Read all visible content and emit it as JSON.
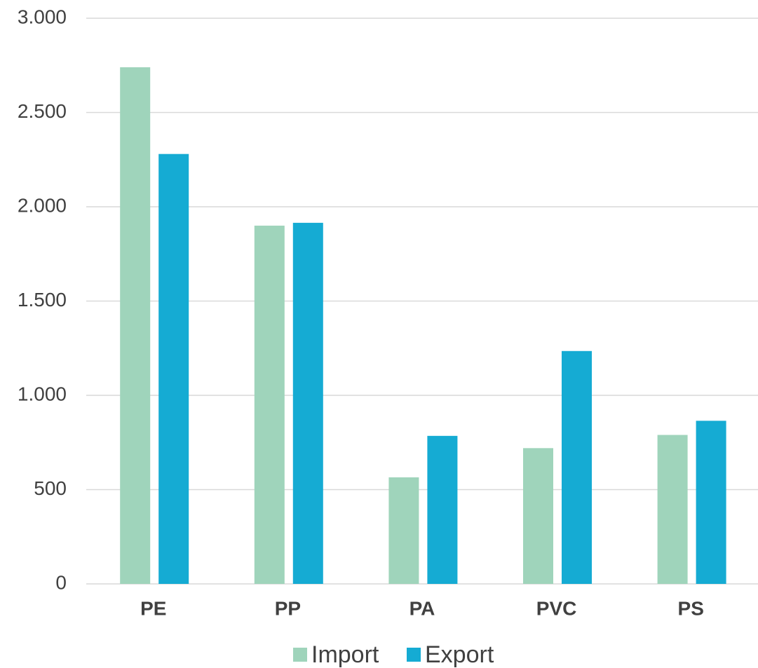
{
  "chart_data": {
    "type": "bar",
    "categories": [
      "PE",
      "PP",
      "PA",
      "PVC",
      "PS"
    ],
    "series": [
      {
        "name": "Import",
        "color": "#9fd4bb",
        "values": [
          2740,
          1900,
          565,
          720,
          790
        ]
      },
      {
        "name": "Export",
        "color": "#15abd3",
        "values": [
          2280,
          1915,
          785,
          1235,
          865
        ]
      }
    ],
    "ylim": [
      0,
      3000
    ],
    "yticks": [
      0,
      500,
      {
        "value": 1000,
        "label": "1.000"
      },
      {
        "value": 1500,
        "label": "1.500"
      },
      {
        "value": 2000,
        "label": "2.000"
      },
      {
        "value": 2500,
        "label": "2.500"
      },
      {
        "value": 3000,
        "label": "3.000"
      }
    ],
    "grid": true,
    "legend": "bottom"
  }
}
